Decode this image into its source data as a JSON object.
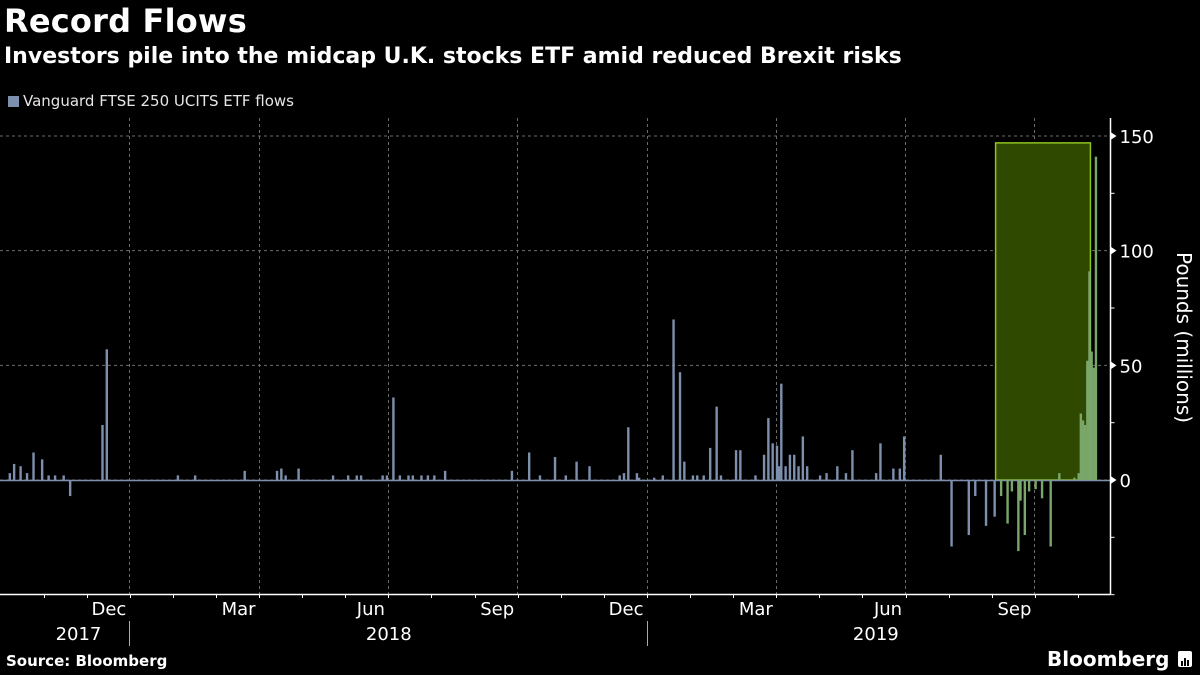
{
  "title": "Record Flows",
  "subtitle": "Investors pile into the midcap U.K. stocks ETF amid reduced Brexit risks",
  "source": "Source: Bloomberg",
  "brand": "Bloomberg",
  "colors": {
    "bar": "#7e8fad",
    "highlight_fill": "#2f4a00",
    "highlight_border": "#8fc31f",
    "highlight_bar": "#7aa66a",
    "axis": "#ffffff",
    "grid": "#6b6b6b"
  },
  "chart_data": {
    "type": "bar",
    "title": "Record Flows",
    "subtitle": "Investors pile into the midcap U.K. stocks ETF amid reduced Brexit risks",
    "legend": [
      "Vanguard FTSE 250 UCITS ETF flows"
    ],
    "legend_position": "top-left",
    "ylabel": "Pounds (millions)",
    "ylim": [
      -50,
      150
    ],
    "yticks": [
      0,
      50,
      100,
      150
    ],
    "y_axis_side": "right",
    "xlim_months": [
      0,
      25.3
    ],
    "x_axis_note": "month index 0 = start of Oct 2017",
    "xticks": [
      {
        "label": "Dec",
        "month": 2.5
      },
      {
        "label": "Mar",
        "month": 5.5
      },
      {
        "label": "Jun",
        "month": 8.5
      },
      {
        "label": "Sep",
        "month": 11.5
      },
      {
        "label": "Dec",
        "month": 14.5
      },
      {
        "label": "Mar",
        "month": 17.5
      },
      {
        "label": "Jun",
        "month": 20.5
      },
      {
        "label": "Sep",
        "month": 23.5
      }
    ],
    "year_labels": [
      {
        "label": "2017",
        "month": 1.8
      },
      {
        "label": "2018",
        "month": 9.0
      },
      {
        "label": "2019",
        "month": 20.3
      }
    ],
    "year_dividers": [
      3,
      15
    ],
    "grid": true,
    "highlight": {
      "from_month": 23.1,
      "to_month": 25.3,
      "ymax": 147
    },
    "series": [
      {
        "name": "Vanguard FTSE 250 UCITS ETF flows",
        "points": [
          [
            0.2,
            3
          ],
          [
            0.3,
            7
          ],
          [
            0.45,
            6
          ],
          [
            0.6,
            3
          ],
          [
            0.75,
            12
          ],
          [
            0.95,
            9
          ],
          [
            1.1,
            2
          ],
          [
            1.25,
            2
          ],
          [
            1.45,
            2
          ],
          [
            1.6,
            -7
          ],
          [
            2.35,
            24
          ],
          [
            2.45,
            57
          ],
          [
            4.1,
            2
          ],
          [
            4.5,
            2
          ],
          [
            5.65,
            4
          ],
          [
            6.4,
            4
          ],
          [
            6.5,
            5
          ],
          [
            6.6,
            2
          ],
          [
            6.9,
            5
          ],
          [
            7.7,
            2
          ],
          [
            8.05,
            2
          ],
          [
            8.25,
            2
          ],
          [
            8.35,
            2
          ],
          [
            8.85,
            2
          ],
          [
            8.95,
            2
          ],
          [
            9.1,
            36
          ],
          [
            9.25,
            2
          ],
          [
            9.45,
            2
          ],
          [
            9.55,
            2
          ],
          [
            9.75,
            2
          ],
          [
            9.9,
            2
          ],
          [
            10.05,
            2
          ],
          [
            10.3,
            4
          ],
          [
            11.85,
            4
          ],
          [
            12.25,
            12
          ],
          [
            12.5,
            2
          ],
          [
            12.85,
            10
          ],
          [
            13.1,
            2
          ],
          [
            13.35,
            8
          ],
          [
            13.65,
            6
          ],
          [
            14.35,
            2
          ],
          [
            14.45,
            3
          ],
          [
            14.55,
            23
          ],
          [
            14.75,
            3
          ],
          [
            14.8,
            1
          ],
          [
            15.15,
            1
          ],
          [
            15.35,
            2
          ],
          [
            15.6,
            70
          ],
          [
            15.75,
            47
          ],
          [
            15.85,
            8
          ],
          [
            16.05,
            2
          ],
          [
            16.15,
            2
          ],
          [
            16.3,
            2
          ],
          [
            16.45,
            14
          ],
          [
            16.6,
            32
          ],
          [
            16.7,
            2
          ],
          [
            17.05,
            13
          ],
          [
            17.15,
            13
          ],
          [
            17.5,
            2
          ],
          [
            17.7,
            11
          ],
          [
            17.8,
            27
          ],
          [
            17.9,
            16
          ],
          [
            18.0,
            15
          ],
          [
            18.05,
            6
          ],
          [
            18.1,
            42
          ],
          [
            18.2,
            6
          ],
          [
            18.3,
            11
          ],
          [
            18.4,
            11
          ],
          [
            18.5,
            6
          ],
          [
            18.6,
            19
          ],
          [
            18.7,
            6
          ],
          [
            19.0,
            2
          ],
          [
            19.15,
            3
          ],
          [
            19.4,
            6
          ],
          [
            19.6,
            3
          ],
          [
            19.75,
            13
          ],
          [
            20.3,
            3
          ],
          [
            20.4,
            16
          ],
          [
            20.7,
            5
          ],
          [
            20.85,
            5
          ],
          [
            20.95,
            19
          ],
          [
            21.8,
            11
          ],
          [
            22.05,
            -29
          ],
          [
            22.45,
            -24
          ],
          [
            22.6,
            -7
          ],
          [
            22.85,
            -20
          ],
          [
            23.05,
            -16
          ],
          [
            23.2,
            -7
          ],
          [
            23.35,
            -19
          ],
          [
            23.45,
            -5
          ],
          [
            23.6,
            -31
          ],
          [
            23.65,
            -9
          ],
          [
            23.75,
            -24
          ],
          [
            23.85,
            -5
          ],
          [
            24.0,
            -4
          ],
          [
            24.15,
            -8
          ],
          [
            24.35,
            -29
          ],
          [
            24.55,
            3
          ],
          [
            24.9,
            1
          ],
          [
            25.0,
            3
          ],
          [
            25.05,
            29
          ],
          [
            25.1,
            26
          ],
          [
            25.15,
            24
          ],
          [
            25.2,
            52
          ],
          [
            25.25,
            91
          ],
          [
            25.3,
            56
          ],
          [
            25.35,
            49
          ],
          [
            25.4,
            141
          ]
        ]
      }
    ]
  }
}
